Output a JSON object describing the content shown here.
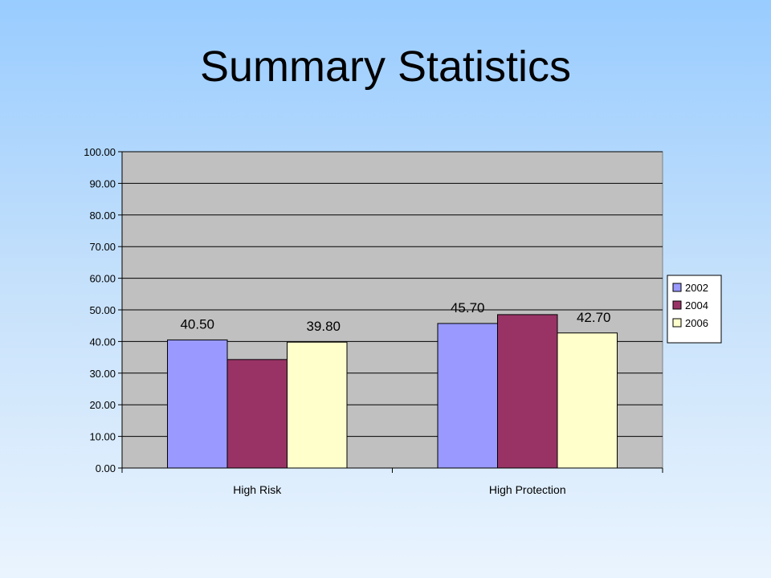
{
  "slide": {
    "title": "Summary Statistics"
  },
  "chart_data": {
    "type": "bar",
    "title": "",
    "xlabel": "",
    "ylabel": "",
    "categories": [
      "High Risk",
      "High Protection"
    ],
    "series": [
      {
        "name": "2002",
        "color": "#9999ff",
        "values": [
          40.5,
          45.7
        ]
      },
      {
        "name": "2004",
        "color": "#993366",
        "values": [
          34.3,
          48.5
        ]
      },
      {
        "name": "2006",
        "color": "#ffffcc",
        "values": [
          39.8,
          42.7
        ]
      }
    ],
    "data_labels": [
      {
        "category": 0,
        "series": 0,
        "text": "40.50"
      },
      {
        "category": 0,
        "series": 2,
        "text": "39.80"
      },
      {
        "category": 1,
        "series": 0,
        "text": "45.70"
      },
      {
        "category": 1,
        "series": 2,
        "text": "42.70"
      }
    ],
    "ylim": [
      0,
      100
    ],
    "yticks": [
      "0.00",
      "10.00",
      "20.00",
      "30.00",
      "40.00",
      "50.00",
      "60.00",
      "70.00",
      "80.00",
      "90.00",
      "100.00"
    ],
    "grid": true,
    "plot_background": "#c0c0c0",
    "legend_position": "right"
  }
}
